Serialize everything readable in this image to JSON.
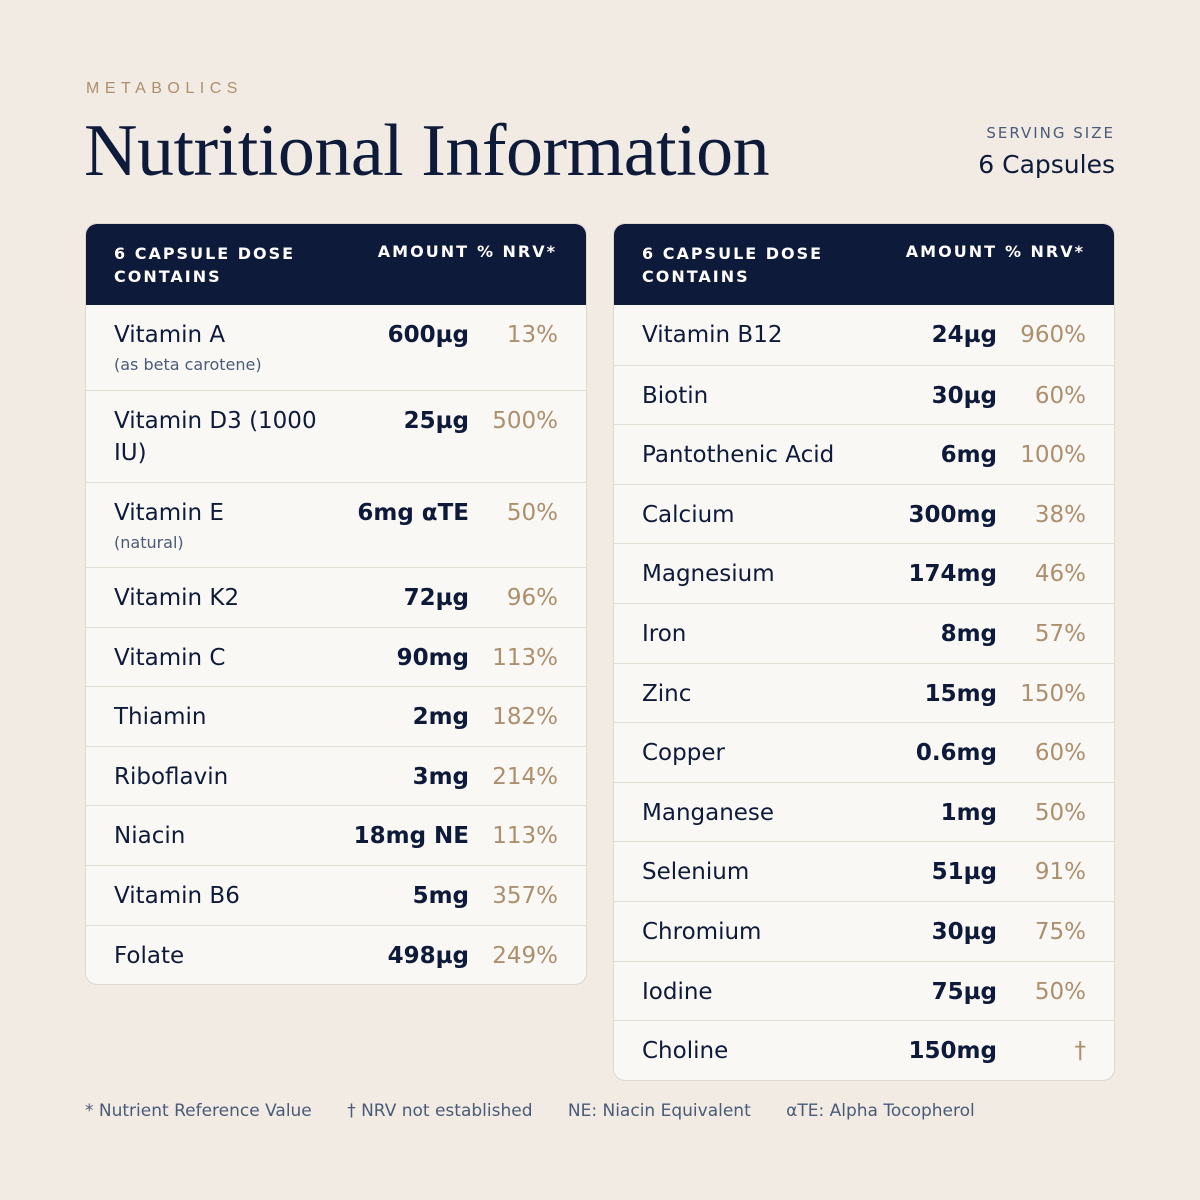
{
  "brand": "METABOLICS",
  "title": "Nutritional Information",
  "serving": {
    "label": "SERVING SIZE",
    "value": "6 Capsules"
  },
  "table_header": {
    "col1": "6 CAPSULE DOSE CONTAINS",
    "col2": "AMOUNT",
    "col3": "% NRV*"
  },
  "left_rows": [
    {
      "name": "Vitamin A",
      "sub": "(as beta carotene)",
      "amount": "600µg",
      "nrv": "13%"
    },
    {
      "name": "Vitamin D3 (1000 IU)",
      "sub": "",
      "amount": "25µg",
      "nrv": "500%"
    },
    {
      "name": "Vitamin E",
      "sub": "(natural)",
      "amount": "6mg αTE",
      "nrv": "50%"
    },
    {
      "name": "Vitamin K2",
      "sub": "",
      "amount": "72µg",
      "nrv": "96%"
    },
    {
      "name": "Vitamin C",
      "sub": "",
      "amount": "90mg",
      "nrv": "113%"
    },
    {
      "name": "Thiamin",
      "sub": "",
      "amount": "2mg",
      "nrv": "182%"
    },
    {
      "name": "Riboflavin",
      "sub": "",
      "amount": "3mg",
      "nrv": "214%"
    },
    {
      "name": "Niacin",
      "sub": "",
      "amount": "18mg NE",
      "nrv": "113%"
    },
    {
      "name": "Vitamin B6",
      "sub": "",
      "amount": "5mg",
      "nrv": "357%"
    },
    {
      "name": "Folate",
      "sub": "",
      "amount": "498µg",
      "nrv": "249%"
    }
  ],
  "right_rows": [
    {
      "name": "Vitamin B12",
      "amount": "24µg",
      "nrv": "960%"
    },
    {
      "name": "Biotin",
      "amount": "30µg",
      "nrv": "60%"
    },
    {
      "name": "Pantothenic Acid",
      "amount": "6mg",
      "nrv": "100%"
    },
    {
      "name": "Calcium",
      "amount": "300mg",
      "nrv": "38%"
    },
    {
      "name": "Magnesium",
      "amount": "174mg",
      "nrv": "46%"
    },
    {
      "name": "Iron",
      "amount": "8mg",
      "nrv": "57%"
    },
    {
      "name": "Zinc",
      "amount": "15mg",
      "nrv": "150%"
    },
    {
      "name": "Copper",
      "amount": "0.6mg",
      "nrv": "60%"
    },
    {
      "name": "Manganese",
      "amount": "1mg",
      "nrv": "50%"
    },
    {
      "name": "Selenium",
      "amount": "51µg",
      "nrv": "91%"
    },
    {
      "name": "Chromium",
      "amount": "30µg",
      "nrv": "75%"
    },
    {
      "name": "Iodine",
      "amount": "75µg",
      "nrv": "50%"
    },
    {
      "name": "Choline",
      "amount": "150mg",
      "nrv": "†"
    }
  ],
  "footer": {
    "nrv": "* Nutrient Reference Value",
    "dagger": "† NRV not established",
    "ne": "NE: Niacin Equivalent",
    "ate": "αTE: Alpha Tocopherol"
  }
}
